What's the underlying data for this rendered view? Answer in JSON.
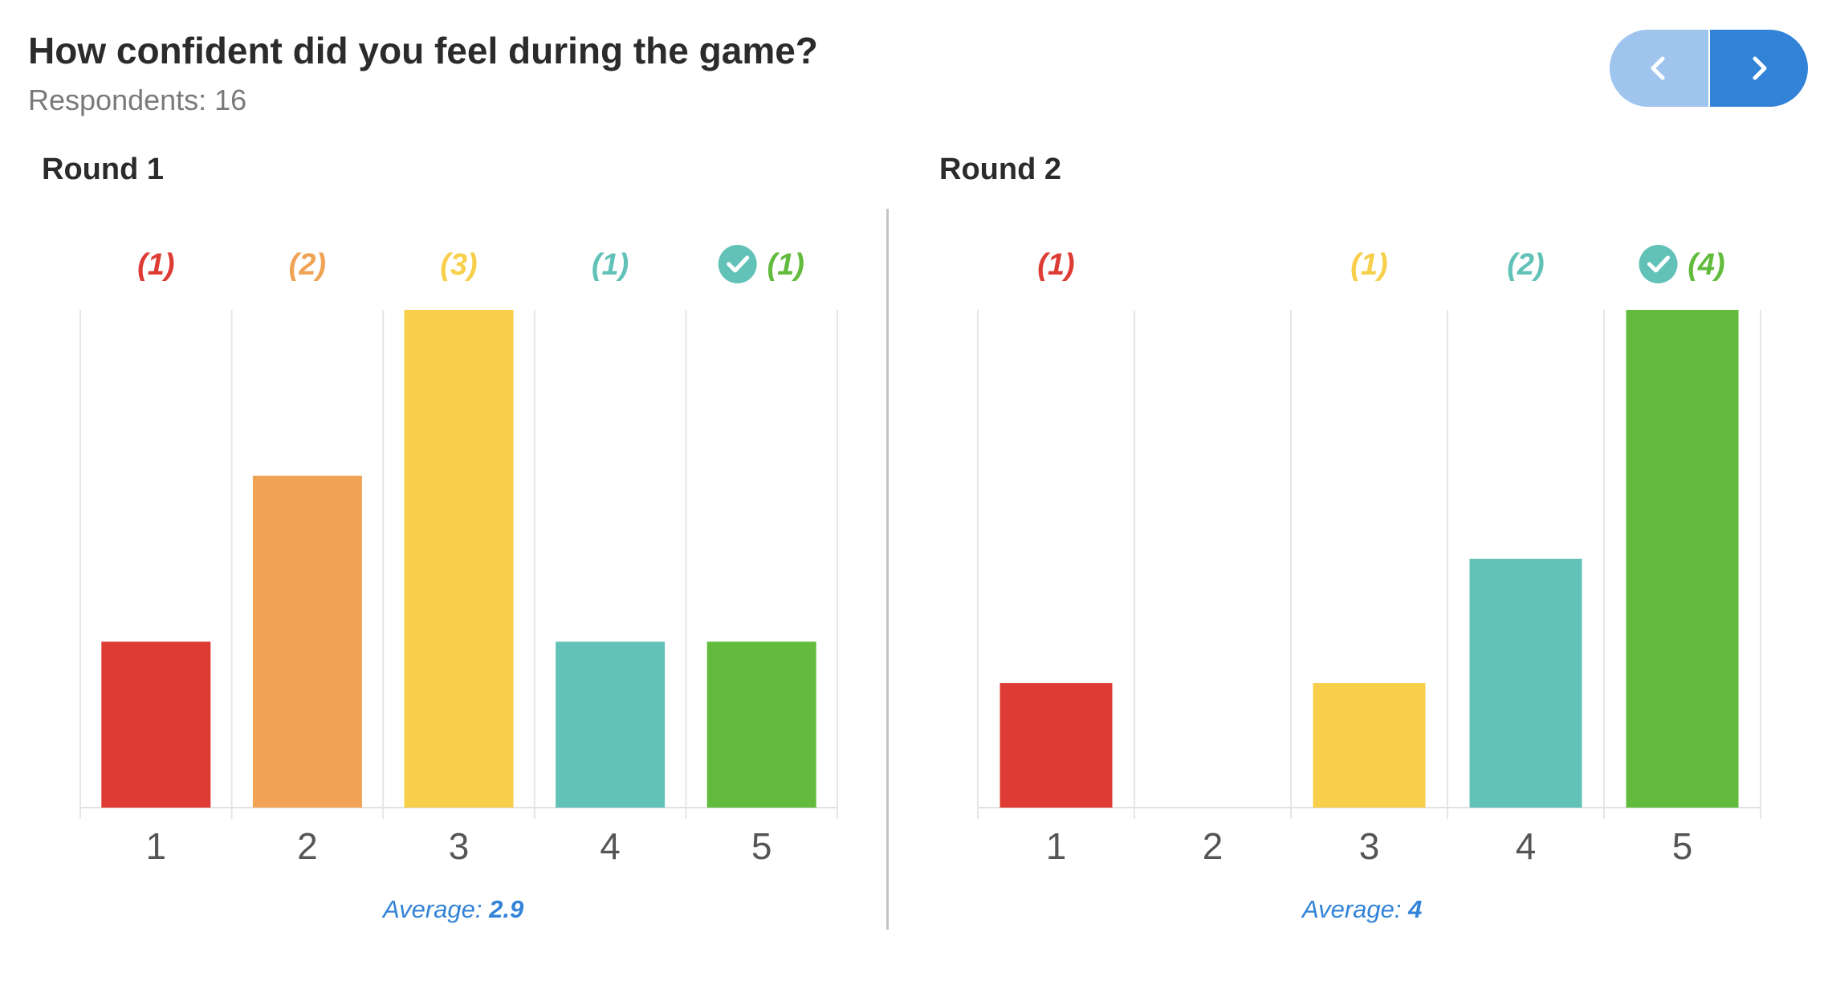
{
  "header": {
    "title": "How confident did you feel during the game?",
    "respondents": "Respondents: 16"
  },
  "nav": {
    "prev_icon": "chevron-left-icon",
    "next_icon": "chevron-right-icon"
  },
  "colors": {
    "1": "#dd3b33",
    "2": "#f0a354",
    "3": "#f7cf4a",
    "4": "#62c2b7",
    "5": "#62bb3d",
    "check_badge": "#62c2b7",
    "accent": "#3283d8"
  },
  "chart_data": [
    {
      "type": "bar",
      "title": "Round 1",
      "categories": [
        "1",
        "2",
        "3",
        "4",
        "5"
      ],
      "values": [
        1,
        2,
        3,
        1,
        1
      ],
      "value_labels": [
        "(1)",
        "(2)",
        "(3)",
        "(1)",
        "(1)"
      ],
      "correct_index": 4,
      "ylim": [
        0,
        3
      ],
      "average_label": "Average:",
      "average_value": "2.9"
    },
    {
      "type": "bar",
      "title": "Round 2",
      "categories": [
        "1",
        "2",
        "3",
        "4",
        "5"
      ],
      "values": [
        1,
        0,
        1,
        2,
        4
      ],
      "value_labels": [
        "(1)",
        "",
        "(1)",
        "(2)",
        "(4)"
      ],
      "correct_index": 4,
      "ylim": [
        0,
        4
      ],
      "average_label": "Average:",
      "average_value": "4"
    }
  ]
}
